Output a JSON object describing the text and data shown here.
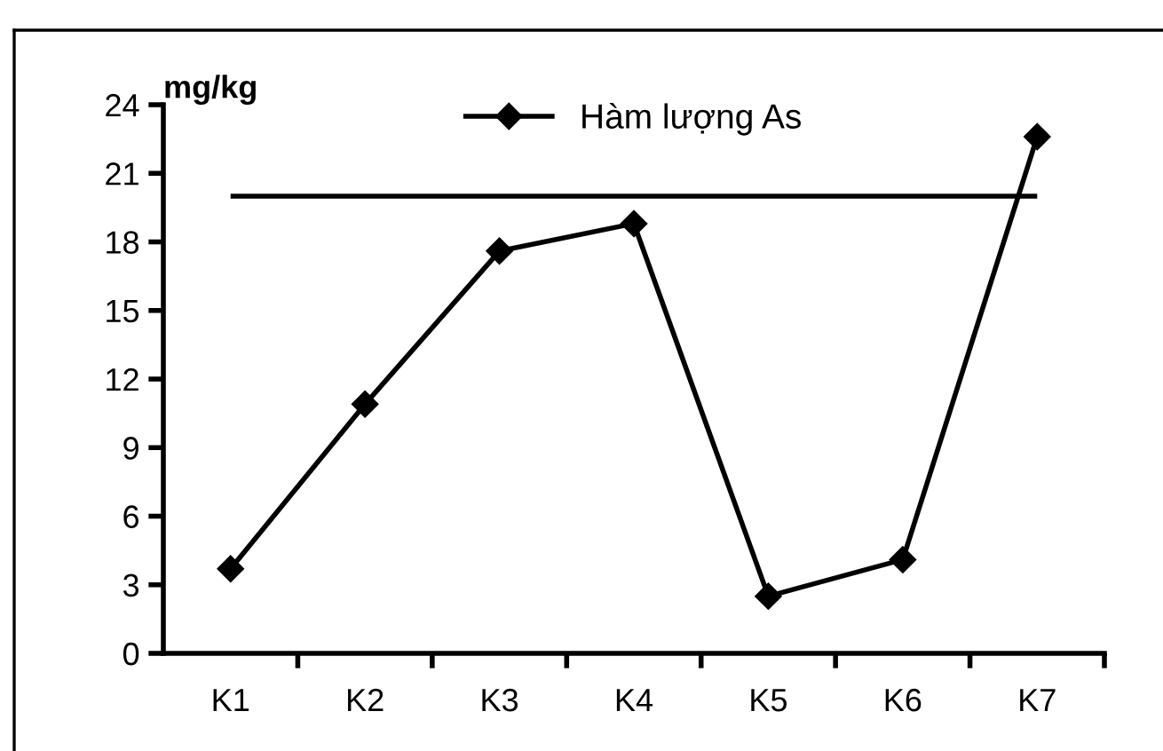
{
  "chart_data": {
    "type": "line",
    "ylabel": "mg/kg",
    "categories": [
      "K1",
      "K2",
      "K3",
      "K4",
      "K5",
      "K6",
      "K7"
    ],
    "series": [
      {
        "name": "Hàm lượng As",
        "color": "#000000",
        "values": [
          3.7,
          10.9,
          17.6,
          18.8,
          2.5,
          4.1,
          22.6
        ]
      }
    ],
    "ref_lines": [
      {
        "axis": "y",
        "value": 20,
        "label": null,
        "color": "#000000",
        "line_style": "solid"
      }
    ],
    "ylim": [
      0,
      24
    ],
    "yticks": [
      0,
      3,
      6,
      9,
      12,
      15,
      18,
      21,
      24
    ],
    "grid": false,
    "legend": "top",
    "marker": "diamond",
    "line_style": "solid"
  }
}
